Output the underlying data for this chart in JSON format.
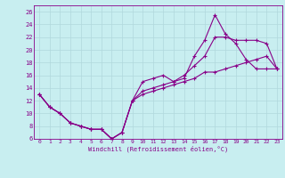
{
  "xlabel": "Windchill (Refroidissement éolien,°C)",
  "bg_color": "#c8eef0",
  "grid_color": "#b0d8dc",
  "line_color": "#880088",
  "xlim": [
    -0.5,
    23.5
  ],
  "ylim": [
    6,
    27
  ],
  "xticks": [
    0,
    1,
    2,
    3,
    4,
    5,
    6,
    7,
    8,
    9,
    10,
    11,
    12,
    13,
    14,
    15,
    16,
    17,
    18,
    19,
    20,
    21,
    22,
    23
  ],
  "yticks": [
    6,
    8,
    10,
    12,
    14,
    16,
    18,
    20,
    22,
    24,
    26
  ],
  "curve1_x": [
    0,
    1,
    2,
    3,
    4,
    5,
    6,
    7,
    8,
    9,
    10,
    11,
    12,
    13,
    14,
    15,
    16,
    17,
    18,
    19,
    20,
    21,
    22,
    23
  ],
  "curve1_y": [
    13,
    11,
    10,
    8.5,
    8,
    7.5,
    7.5,
    6,
    7,
    12,
    15,
    15.5,
    16,
    15,
    15.5,
    19,
    21.5,
    25.5,
    22.5,
    21,
    18.5,
    17,
    17,
    17
  ],
  "curve2_x": [
    0,
    1,
    2,
    3,
    4,
    5,
    6,
    7,
    8,
    9,
    10,
    11,
    12,
    13,
    14,
    15,
    16,
    17,
    18,
    19,
    20,
    21,
    22,
    23
  ],
  "curve2_y": [
    13,
    11,
    10,
    8.5,
    8,
    7.5,
    7.5,
    6,
    7,
    12,
    13.5,
    14,
    14.5,
    15,
    16,
    17.5,
    19,
    22,
    22,
    21.5,
    21.5,
    21.5,
    21,
    17
  ],
  "curve3_x": [
    0,
    1,
    2,
    3,
    4,
    5,
    6,
    7,
    8,
    9,
    10,
    11,
    12,
    13,
    14,
    15,
    16,
    17,
    18,
    19,
    20,
    21,
    22,
    23
  ],
  "curve3_y": [
    13,
    11,
    10,
    8.5,
    8,
    7.5,
    7.5,
    6,
    7,
    12,
    13,
    13.5,
    14,
    14.5,
    15,
    15.5,
    16.5,
    16.5,
    17,
    17.5,
    18,
    18.5,
    19,
    17
  ]
}
